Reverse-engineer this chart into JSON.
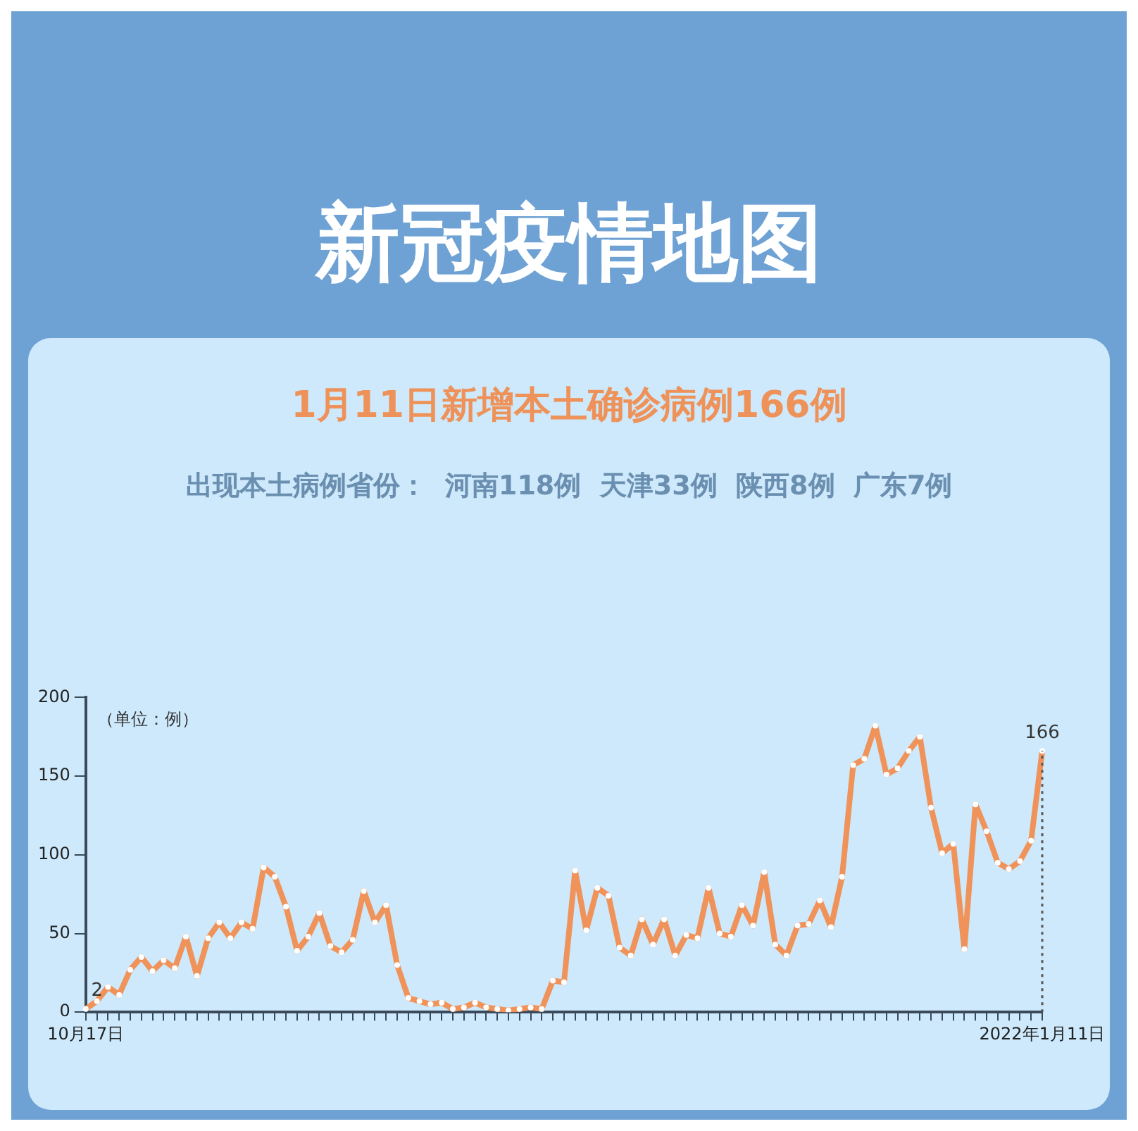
{
  "chart_data": {
    "type": "line",
    "title": "新冠疫情地图",
    "subtitle": "1月11日新增本土确诊病例166例",
    "annotations": [
      "出现本土病例省份：  河南118例  天津33例  陕西8例  广东7例"
    ],
    "ylabel": "（单位：例）",
    "categories": [
      "10月17日",
      null,
      null,
      null,
      null,
      null,
      null,
      null,
      null,
      null,
      null,
      null,
      null,
      null,
      null,
      null,
      null,
      null,
      null,
      null,
      null,
      null,
      null,
      null,
      null,
      null,
      null,
      null,
      null,
      null,
      null,
      null,
      null,
      null,
      null,
      null,
      null,
      null,
      null,
      null,
      null,
      null,
      null,
      null,
      null,
      null,
      null,
      null,
      null,
      null,
      null,
      null,
      null,
      null,
      null,
      null,
      null,
      null,
      null,
      null,
      null,
      null,
      null,
      null,
      null,
      null,
      null,
      null,
      null,
      null,
      null,
      null,
      null,
      null,
      null,
      null,
      null,
      null,
      null,
      null,
      null,
      null,
      null,
      null,
      null,
      null,
      "2022年1月11日"
    ],
    "series": [
      {
        "color": "#f0935a",
        "values": [
          2,
          7,
          16,
          11,
          27,
          35,
          26,
          33,
          28,
          48,
          23,
          47,
          57,
          47,
          57,
          53,
          92,
          86,
          67,
          39,
          48,
          63,
          42,
          38,
          46,
          77,
          57,
          68,
          30,
          9,
          7,
          5,
          6,
          2,
          3,
          6,
          3,
          2,
          1,
          2,
          3,
          2,
          20,
          19,
          90,
          52,
          79,
          74,
          41,
          36,
          59,
          43,
          59,
          36,
          49,
          47,
          79,
          50,
          48,
          68,
          55,
          89,
          43,
          36,
          55,
          56,
          71,
          54,
          86,
          157,
          161,
          182,
          151,
          155,
          166,
          175,
          130,
          101,
          107,
          40,
          132,
          115,
          95,
          91,
          96,
          109,
          166
        ],
        "value_labels": [
          "2",
          null,
          null,
          null,
          null,
          null,
          null,
          null,
          null,
          null,
          null,
          null,
          null,
          null,
          null,
          null,
          null,
          null,
          null,
          null,
          null,
          null,
          null,
          null,
          null,
          null,
          null,
          null,
          null,
          null,
          null,
          null,
          null,
          null,
          null,
          null,
          null,
          null,
          null,
          null,
          null,
          null,
          null,
          null,
          null,
          null,
          null,
          null,
          null,
          null,
          null,
          null,
          null,
          null,
          null,
          null,
          null,
          null,
          null,
          null,
          null,
          null,
          null,
          null,
          null,
          null,
          null,
          null,
          null,
          null,
          null,
          null,
          null,
          null,
          null,
          null,
          null,
          null,
          null,
          null,
          null,
          null,
          null,
          null,
          null,
          null,
          "166"
        ]
      }
    ],
    "ylim": [
      0,
      200
    ],
    "yticks": [
      0,
      50,
      100,
      150,
      200
    ],
    "grid": false,
    "legend": false,
    "marker": "circle",
    "line_style": "solid",
    "ref_lines": [
      {
        "axis": "x",
        "value": "2022年1月11日",
        "line_style": "dotted",
        "color": "#555555"
      }
    ]
  }
}
